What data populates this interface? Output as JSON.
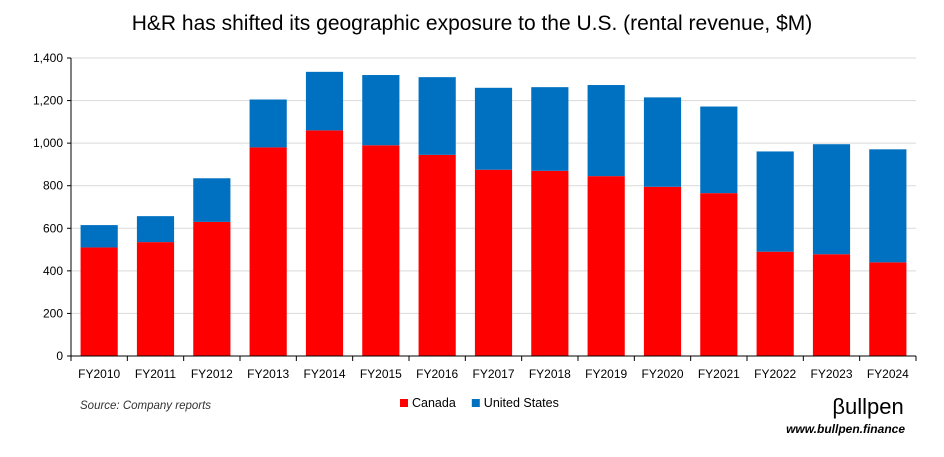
{
  "chart_data": {
    "type": "bar",
    "stacked": true,
    "title": "H&R has shifted its geographic exposure to the U.S. (rental revenue, $M)",
    "categories": [
      "FY2010",
      "FY2011",
      "FY2012",
      "FY2013",
      "FY2014",
      "FY2015",
      "FY2016",
      "FY2017",
      "FY2018",
      "FY2019",
      "FY2020",
      "FY2021",
      "FY2022",
      "FY2023",
      "FY2024"
    ],
    "series": [
      {
        "name": "Canada",
        "color": "#ff0000",
        "values": [
          510,
          535,
          630,
          980,
          1060,
          990,
          945,
          875,
          870,
          845,
          795,
          765,
          490,
          478,
          440
        ]
      },
      {
        "name": "United States",
        "color": "#0070c0",
        "values": [
          105,
          122,
          205,
          225,
          275,
          330,
          365,
          385,
          393,
          428,
          420,
          407,
          471,
          517,
          531
        ]
      }
    ],
    "ylim": [
      0,
      1400
    ],
    "yticks": [
      0,
      200,
      400,
      600,
      800,
      1000,
      1200,
      1400
    ],
    "ytick_labels": [
      "0",
      "200",
      "400",
      "600",
      "800",
      "1,000",
      "1,200",
      "1,400"
    ],
    "grid": true,
    "legend_position": "bottom-center"
  },
  "footer": {
    "source": "Source: Company reports",
    "brand_name": "βullpen",
    "brand_url": "www.bullpen.finance"
  }
}
